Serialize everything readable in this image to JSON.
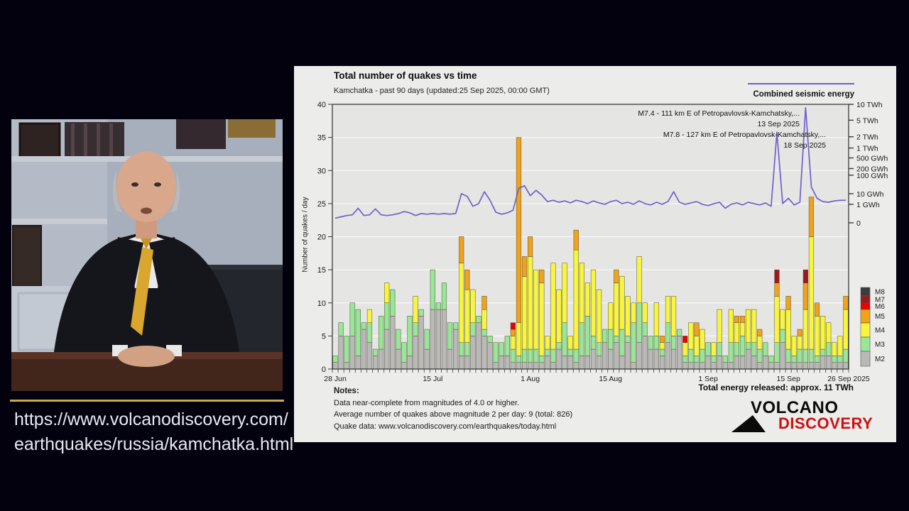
{
  "video": {
    "url_line1": "https://www.volcanodiscovery.com/",
    "url_line2": "earthquakes/russia/kamchatka.html"
  },
  "chart": {
    "title": "Total number of quakes vs time",
    "subtitle": "Kamchatka - past 90 days (updated:25 Sep 2025, 00:00 GMT)",
    "energy_legend_label": "Combined seismic energy",
    "ylabel": "Number of quakes / day",
    "annotations": [
      {
        "line1": "M7.4 - 111 km E of Petropavlovsk-Kamchatsky,...",
        "line2": "13 Sep 2025"
      },
      {
        "line1": "M7.8 - 127 km E of Petropavlovsk-Kamchatsky,...",
        "line2": "18 Sep 2025"
      }
    ],
    "total_energy_label": "Total energy released: approx. 11 TWh",
    "notes_title": "Notes:",
    "notes": [
      "Data near-complete from magnitudes of 4.0 or higher.",
      "Average number of quakes above magnitude 2 per day: 9 (total: 826)",
      "Quake data: www.volcanodiscovery.com/earthquakes/today.html"
    ],
    "logo": {
      "volcano": "VOLCANO",
      "discovery": "DISCOVERY"
    }
  },
  "chart_data": {
    "type": "bar",
    "title": "Total number of quakes vs time",
    "xlabel": "",
    "ylabel": "Number of quakes / day",
    "ylim": [
      0,
      40
    ],
    "ytick_step": 5,
    "grid": true,
    "legend_position": "right",
    "stack_order": [
      "M2",
      "M3",
      "M4",
      "M5",
      "M6",
      "M7"
    ],
    "colors": {
      "M2": "#b9b9b9",
      "M3": "#98e698",
      "M4": "#f8f53c",
      "M5": "#f0a21a",
      "M6": "#e80202",
      "M7": "#a01818",
      "M8": "#3c3c3c"
    },
    "legend": [
      {
        "label": "M8",
        "color": "#3c3c3c",
        "h": 12
      },
      {
        "label": "M7",
        "color": "#a01818",
        "h": 10
      },
      {
        "label": "M6",
        "color": "#e80202",
        "h": 9
      },
      {
        "label": "M5",
        "color": "#f0a21a",
        "h": 19
      },
      {
        "label": "M4",
        "color": "#f8f53c",
        "h": 20
      },
      {
        "label": "M3",
        "color": "#98e698",
        "h": 20
      },
      {
        "label": "M2",
        "color": "#b9b9b9",
        "h": 21
      }
    ],
    "x_ticks": [
      {
        "label": "28 Jun",
        "day": 1
      },
      {
        "label": "15 Jul",
        "day": 18
      },
      {
        "label": "1 Aug",
        "day": 35
      },
      {
        "label": "15 Aug",
        "day": 49
      },
      {
        "label": "1 Sep",
        "day": 66
      },
      {
        "label": "15 Sep",
        "day": 80
      },
      {
        "label": "26 Sep 2025",
        "day": 91
      }
    ],
    "right_axis_ticks": [
      {
        "label": "10 TWh",
        "pos": 40.0
      },
      {
        "label": "5 TWh",
        "pos": 37.6
      },
      {
        "label": "2 TWh",
        "pos": 35.1
      },
      {
        "label": "1 TWh",
        "pos": 33.4
      },
      {
        "label": "500 GWh",
        "pos": 31.9
      },
      {
        "label": "200 GWh",
        "pos": 30.3
      },
      {
        "label": "100 GWh",
        "pos": 29.3
      },
      {
        "label": "10 GWh",
        "pos": 26.5
      },
      {
        "label": "1 GWh",
        "pos": 24.9
      },
      {
        "label": "0",
        "pos": 22.1
      }
    ],
    "bars": [
      [
        1,
        1,
        0,
        0,
        0,
        0
      ],
      [
        5,
        2,
        0,
        0,
        0,
        0
      ],
      [
        1,
        4,
        0,
        0,
        0,
        0
      ],
      [
        5,
        5,
        0,
        0,
        0,
        0
      ],
      [
        2,
        7,
        0,
        0,
        0,
        0
      ],
      [
        6,
        1,
        0,
        0,
        0,
        0
      ],
      [
        4,
        3,
        2,
        0,
        0,
        0
      ],
      [
        2,
        1,
        0,
        0,
        0,
        0
      ],
      [
        3,
        5,
        0,
        0,
        0,
        0
      ],
      [
        6,
        4,
        3,
        0,
        0,
        0
      ],
      [
        8,
        4,
        0,
        0,
        0,
        0
      ],
      [
        3,
        3,
        0,
        0,
        0,
        0
      ],
      [
        1,
        3,
        0,
        0,
        0,
        0
      ],
      [
        2,
        6,
        0,
        0,
        0,
        0
      ],
      [
        5,
        2,
        4,
        0,
        0,
        0
      ],
      [
        8,
        1,
        0,
        0,
        0,
        0
      ],
      [
        3,
        3,
        0,
        0,
        0,
        0
      ],
      [
        9,
        6,
        0,
        0,
        0,
        0
      ],
      [
        9,
        1,
        0,
        0,
        0,
        0
      ],
      [
        9,
        4,
        0,
        0,
        0,
        0
      ],
      [
        3,
        4,
        0,
        0,
        0,
        0
      ],
      [
        6,
        1,
        0,
        0,
        0,
        0
      ],
      [
        2,
        2,
        12,
        4,
        0,
        0
      ],
      [
        2,
        2,
        8,
        3,
        0,
        0
      ],
      [
        5,
        2,
        5,
        0,
        0,
        0
      ],
      [
        7,
        1,
        0,
        0,
        0,
        0
      ],
      [
        5,
        1,
        3,
        2,
        0,
        0
      ],
      [
        4,
        1,
        0,
        0,
        0,
        0
      ],
      [
        1,
        3,
        0,
        0,
        0,
        0
      ],
      [
        2,
        2,
        0,
        0,
        0,
        0
      ],
      [
        2,
        3,
        0,
        0,
        0,
        0
      ],
      [
        1,
        2,
        2,
        1,
        1,
        0
      ],
      [
        1,
        1,
        5,
        28,
        0,
        0
      ],
      [
        1,
        2,
        11,
        3,
        0,
        0
      ],
      [
        1,
        2,
        14,
        3,
        0,
        0
      ],
      [
        1,
        2,
        12,
        0,
        0,
        0
      ],
      [
        1,
        1,
        11,
        2,
        0,
        0
      ],
      [
        2,
        1,
        2,
        0,
        0,
        0
      ],
      [
        1,
        2,
        13,
        0,
        0,
        0
      ],
      [
        3,
        1,
        8,
        0,
        0,
        0
      ],
      [
        2,
        5,
        9,
        0,
        0,
        0
      ],
      [
        2,
        1,
        2,
        0,
        0,
        0
      ],
      [
        1,
        2,
        15,
        3,
        0,
        0
      ],
      [
        2,
        5,
        9,
        0,
        0,
        0
      ],
      [
        2,
        6,
        5,
        0,
        0,
        0
      ],
      [
        3,
        2,
        10,
        0,
        0,
        0
      ],
      [
        2,
        2,
        8,
        0,
        0,
        0
      ],
      [
        4,
        2,
        0,
        0,
        0,
        0
      ],
      [
        3,
        3,
        4,
        0,
        0,
        0
      ],
      [
        4,
        1,
        8,
        2,
        0,
        0
      ],
      [
        2,
        4,
        8,
        0,
        0,
        0
      ],
      [
        4,
        1,
        6,
        0,
        0,
        0
      ],
      [
        1,
        6,
        3,
        0,
        0,
        0
      ],
      [
        4,
        6,
        7,
        0,
        0,
        0
      ],
      [
        5,
        2,
        3,
        0,
        0,
        0
      ],
      [
        3,
        2,
        0,
        0,
        0,
        0
      ],
      [
        3,
        2,
        5,
        0,
        0,
        0
      ],
      [
        2,
        1,
        1,
        1,
        0,
        0
      ],
      [
        4,
        3,
        4,
        0,
        0,
        0
      ],
      [
        3,
        2,
        6,
        0,
        0,
        0
      ],
      [
        5,
        1,
        0,
        0,
        0,
        0
      ],
      [
        1,
        1,
        2,
        0,
        1,
        0
      ],
      [
        1,
        2,
        4,
        0,
        0,
        0
      ],
      [
        1,
        1,
        3,
        2,
        0,
        0
      ],
      [
        1,
        2,
        3,
        0,
        0,
        0
      ],
      [
        2,
        2,
        0,
        0,
        0,
        0
      ],
      [
        1,
        1,
        2,
        0,
        0,
        0
      ],
      [
        2,
        2,
        5,
        0,
        0,
        0
      ],
      [
        1,
        1,
        0,
        0,
        0,
        0
      ],
      [
        1,
        3,
        5,
        0,
        0,
        0
      ],
      [
        2,
        2,
        3,
        1,
        0,
        0
      ],
      [
        2,
        3,
        2,
        1,
        0,
        0
      ],
      [
        3,
        1,
        5,
        0,
        0,
        0
      ],
      [
        2,
        2,
        5,
        0,
        0,
        0
      ],
      [
        1,
        2,
        2,
        1,
        0,
        0
      ],
      [
        2,
        2,
        0,
        0,
        0,
        0
      ],
      [
        1,
        1,
        0,
        0,
        0,
        0
      ],
      [
        1,
        3,
        7,
        2,
        0,
        2
      ],
      [
        4,
        2,
        3,
        0,
        0,
        0
      ],
      [
        1,
        2,
        6,
        2,
        0,
        0
      ],
      [
        1,
        1,
        3,
        0,
        0,
        0
      ],
      [
        1,
        2,
        2,
        1,
        0,
        0
      ],
      [
        1,
        2,
        6,
        4,
        0,
        2
      ],
      [
        1,
        2,
        17,
        6,
        0,
        0
      ],
      [
        1,
        1,
        6,
        2,
        0,
        0
      ],
      [
        2,
        1,
        5,
        0,
        0,
        0
      ],
      [
        2,
        2,
        3,
        0,
        0,
        0
      ],
      [
        1,
        1,
        2,
        0,
        0,
        0
      ],
      [
        1,
        1,
        3,
        0,
        0,
        0
      ],
      [
        1,
        2,
        6,
        2,
        0,
        0
      ]
    ],
    "energy_line_color": "#6e61c8",
    "energy_line": [
      22.8,
      23.0,
      23.2,
      23.3,
      24.3,
      23.2,
      23.3,
      24.2,
      23.3,
      23.2,
      23.3,
      23.5,
      23.8,
      23.6,
      23.2,
      23.5,
      23.4,
      23.5,
      23.4,
      23.5,
      23.4,
      23.5,
      26.5,
      26.1,
      24.6,
      25.0,
      26.8,
      25.5,
      23.7,
      23.4,
      23.6,
      24.0,
      27.3,
      27.7,
      26.2,
      27.0,
      26.3,
      25.3,
      25.5,
      25.2,
      25.4,
      25.1,
      25.5,
      25.3,
      25.0,
      25.4,
      25.1,
      24.9,
      25.3,
      25.5,
      25.0,
      25.2,
      24.9,
      25.4,
      25.0,
      24.8,
      25.2,
      24.9,
      25.3,
      26.8,
      25.2,
      24.9,
      25.1,
      25.3,
      24.9,
      24.7,
      25.0,
      25.2,
      24.3,
      24.9,
      25.1,
      24.8,
      25.2,
      25.0,
      24.8,
      25.1,
      24.6,
      35.8,
      25.0,
      25.8,
      24.8,
      25.2,
      39.5,
      27.5,
      25.8,
      25.3,
      25.2,
      25.4,
      25.5,
      25.5
    ]
  }
}
